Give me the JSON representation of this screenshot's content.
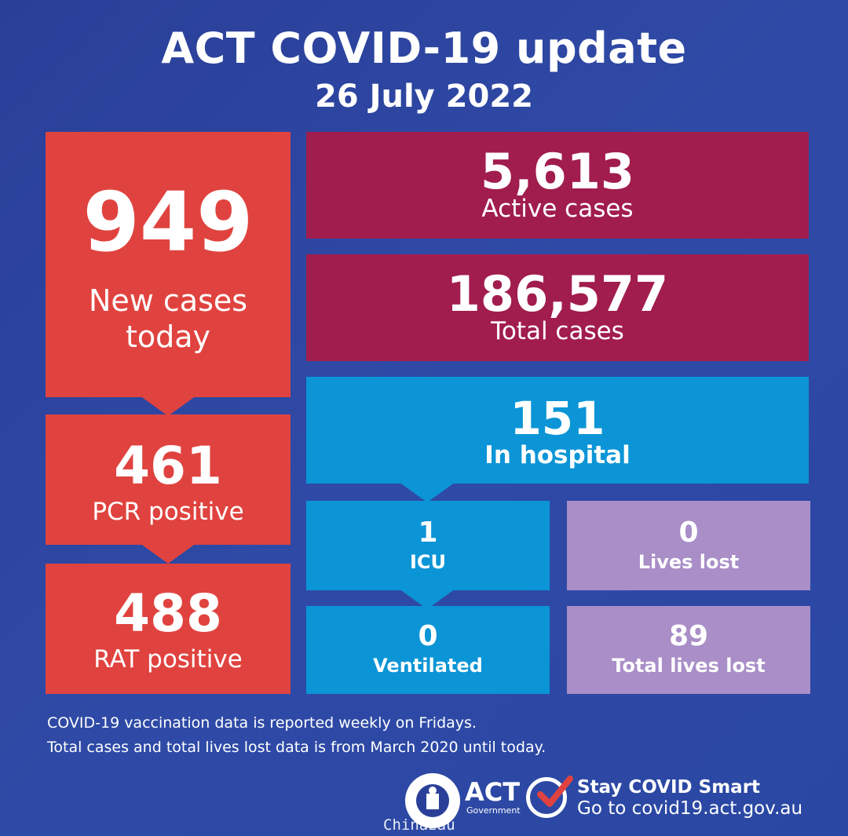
{
  "header": {
    "title": "ACT COVID-19 update",
    "date": "26 July 2022"
  },
  "tiles": {
    "new_cases": {
      "value": "949",
      "label_line1": "New cases",
      "label_line2": "today"
    },
    "pcr": {
      "value": "461",
      "label": "PCR positive"
    },
    "rat": {
      "value": "488",
      "label": "RAT positive"
    },
    "active": {
      "value": "5,613",
      "label": "Active cases"
    },
    "total": {
      "value": "186,577",
      "label": "Total cases"
    },
    "hospital": {
      "value": "151",
      "label": "In hospital"
    },
    "icu": {
      "value": "1",
      "label": "ICU"
    },
    "ventilated": {
      "value": "0",
      "label": "Ventilated"
    },
    "lives_lost": {
      "value": "0",
      "label": "Lives lost"
    },
    "total_lives_lost": {
      "value": "89",
      "label": "Total lives lost"
    }
  },
  "notes": {
    "line1": "COVID-19 vaccination data is reported weekly on Fridays.",
    "line2": "Total cases and total lives lost data is from March 2020 until today."
  },
  "footer": {
    "act_logo": "ACT",
    "act_logo_sub": "Government",
    "crest_icon": "act-crest-icon",
    "check_icon": "checkmark-circle-icon",
    "stay_line": "Stay COVID Smart",
    "go_line": "Go to covid19.act.gov.au"
  },
  "watermark": "Chinazau",
  "colors": {
    "background": "#2a3f98",
    "red": "#e0433f",
    "maroon": "#a11d4d",
    "blue": "#0b95d6",
    "lilac": "#a98ec7",
    "check_accent": "#e0433f"
  }
}
